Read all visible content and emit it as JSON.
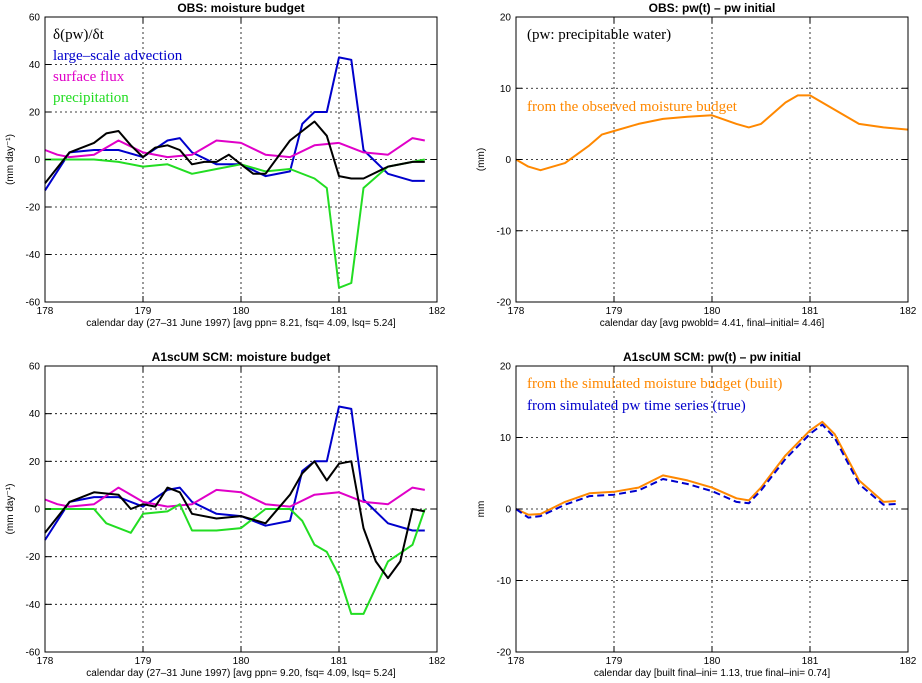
{
  "chart_data": [
    {
      "type": "line",
      "title": "OBS: moisture budget",
      "xlabel": "calendar day (27–31 June 1997)  [avg ppn=  8.21, fsq=  4.09, lsq=  5.24]",
      "ylabel": "(mm day⁻¹)",
      "xlim": [
        178,
        182
      ],
      "ylim": [
        -60,
        60
      ],
      "xticks": [
        178,
        179,
        180,
        181,
        182
      ],
      "yticks": [
        -60,
        -40,
        -20,
        0,
        20,
        40,
        60
      ],
      "grid": true,
      "legend_position": "top-left",
      "legend": [
        {
          "label": "δ(pw)/δt",
          "color": "#000000"
        },
        {
          "label": "large–scale advection",
          "color": "#0000cc"
        },
        {
          "label": "surface flux",
          "color": "#e000c8"
        },
        {
          "label": "precipitation",
          "color": "#22dd22"
        }
      ],
      "series": [
        {
          "color": "#0000cc",
          "x": [
            178,
            178.25,
            178.5,
            178.75,
            179,
            179.25,
            179.375,
            179.5,
            179.75,
            180,
            180.25,
            180.5,
            180.625,
            180.75,
            180.875,
            181,
            181.125,
            181.25,
            181.5,
            181.75,
            181.875
          ],
          "y": [
            -13,
            3,
            4,
            4,
            1,
            8,
            9,
            3,
            -2,
            -2,
            -7,
            -5,
            15,
            20,
            20,
            43,
            42,
            4,
            -6,
            -9,
            -9
          ]
        },
        {
          "color": "#e000c8",
          "x": [
            178,
            178.125,
            178.25,
            178.5,
            178.75,
            179,
            179.25,
            179.5,
            179.75,
            180,
            180.25,
            180.5,
            180.75,
            181,
            181.25,
            181.5,
            181.75,
            181.875
          ],
          "y": [
            4,
            2,
            1,
            2,
            8,
            3,
            1,
            2,
            8,
            7,
            2,
            1,
            6,
            7,
            3,
            2,
            9,
            8
          ]
        },
        {
          "color": "#22dd22",
          "x": [
            178,
            178.25,
            178.5,
            178.75,
            179,
            179.25,
            179.5,
            179.75,
            180,
            180.25,
            180.5,
            180.75,
            180.875,
            181,
            181.125,
            181.25,
            181.5,
            181.75,
            181.875
          ],
          "y": [
            0,
            0,
            0,
            -1,
            -3,
            -2,
            -6,
            -4,
            -2,
            -5,
            -4,
            -8,
            -12,
            -54,
            -52,
            -12,
            -3,
            -1,
            0
          ]
        },
        {
          "color": "#000000",
          "x": [
            178,
            178.25,
            178.5,
            178.625,
            178.75,
            178.875,
            179,
            179.125,
            179.25,
            179.375,
            179.5,
            179.625,
            179.75,
            179.875,
            180,
            180.125,
            180.25,
            180.5,
            180.75,
            180.875,
            181,
            181.125,
            181.25,
            181.5,
            181.75,
            181.875
          ],
          "y": [
            -10,
            3,
            7,
            11,
            12,
            6,
            1,
            5,
            6,
            4,
            -2,
            -1,
            -1,
            2,
            -2,
            -6,
            -6,
            8,
            16,
            10,
            -7,
            -8,
            -8,
            -3,
            -1,
            -1
          ]
        }
      ]
    },
    {
      "type": "line",
      "title": "OBS: pw(t) – pw initial",
      "xlabel": "calendar day [avg pwobld=  4.41, final–initial=  4.46]",
      "ylabel": "(mm)",
      "xlim": [
        178,
        182
      ],
      "ylim": [
        -20,
        20
      ],
      "xticks": [
        178,
        179,
        180,
        181,
        182
      ],
      "yticks": [
        -20,
        -10,
        0,
        10,
        20
      ],
      "grid": true,
      "legend_position": "top-left",
      "legend": [
        {
          "label": "(pw: precipitable water)",
          "color": "#000000"
        },
        {
          "label": "from the observed moisture budget",
          "color": "#ff8800"
        }
      ],
      "series": [
        {
          "color": "#ff8800",
          "x": [
            178,
            178.125,
            178.25,
            178.5,
            178.75,
            178.875,
            179,
            179.25,
            179.5,
            179.75,
            180,
            180.25,
            180.375,
            180.5,
            180.75,
            180.875,
            181,
            181.25,
            181.5,
            181.75,
            182
          ],
          "y": [
            0,
            -1,
            -1.5,
            -0.5,
            2,
            3.5,
            4,
            5,
            5.7,
            6,
            6.2,
            5,
            4.5,
            5,
            8,
            9,
            9,
            7,
            5,
            4.5,
            4.2
          ]
        }
      ]
    },
    {
      "type": "line",
      "title": "A1scUM SCM: moisture budget",
      "xlabel": "calendar day (27–31 June 1997)  [avg ppn=  9.20, fsq=  4.09, lsq=  5.24]",
      "ylabel": "(mm day⁻¹)",
      "xlim": [
        178,
        182
      ],
      "ylim": [
        -60,
        60
      ],
      "xticks": [
        178,
        179,
        180,
        181,
        182
      ],
      "yticks": [
        -60,
        -40,
        -20,
        0,
        20,
        40,
        60
      ],
      "grid": true,
      "series": [
        {
          "color": "#0000cc",
          "x": [
            178,
            178.25,
            178.5,
            178.75,
            179,
            179.25,
            179.375,
            179.5,
            179.75,
            180,
            180.25,
            180.5,
            180.625,
            180.75,
            180.875,
            181,
            181.125,
            181.25,
            181.5,
            181.75,
            181.875
          ],
          "y": [
            -13,
            3,
            5,
            5,
            1,
            8,
            9,
            3,
            -2,
            -3,
            -7,
            -5,
            16,
            20,
            20,
            43,
            42,
            4,
            -6,
            -9,
            -9
          ]
        },
        {
          "color": "#e000c8",
          "x": [
            178,
            178.125,
            178.25,
            178.5,
            178.75,
            179,
            179.25,
            179.5,
            179.75,
            180,
            180.25,
            180.5,
            180.75,
            181,
            181.25,
            181.5,
            181.75,
            181.875
          ],
          "y": [
            4,
            2,
            1,
            2,
            9,
            3,
            1,
            2,
            8,
            7,
            2,
            1,
            6,
            7,
            3,
            2,
            9,
            8
          ]
        },
        {
          "color": "#22dd22",
          "x": [
            178,
            178.25,
            178.5,
            178.625,
            178.875,
            179,
            179.25,
            179.375,
            179.5,
            179.75,
            180,
            180.25,
            180.5,
            180.625,
            180.75,
            180.875,
            181,
            181.125,
            181.25,
            181.5,
            181.75,
            181.875
          ],
          "y": [
            0,
            0,
            0,
            -6,
            -10,
            -2,
            -1,
            2,
            -9,
            -9,
            -8,
            0,
            0,
            -5,
            -15,
            -18,
            -28,
            -44,
            -44,
            -22,
            -15,
            0
          ]
        },
        {
          "color": "#000000",
          "x": [
            178,
            178.25,
            178.5,
            178.75,
            178.875,
            179,
            179.125,
            179.25,
            179.375,
            179.5,
            179.75,
            180,
            180.25,
            180.5,
            180.625,
            180.75,
            180.875,
            181,
            181.125,
            181.25,
            181.375,
            181.5,
            181.625,
            181.75,
            181.875
          ],
          "y": [
            -10,
            3,
            7,
            6,
            0,
            2,
            1,
            9,
            7,
            -2,
            -4,
            -3,
            -6,
            6,
            15,
            20,
            12,
            19,
            20,
            -8,
            -22,
            -29,
            -22,
            0,
            -1
          ]
        }
      ]
    },
    {
      "type": "line",
      "title": "A1scUM SCM: pw(t) – pw initial",
      "xlabel": "calendar day  [built final–ini=  1.13, true final–ini=  0.74]",
      "ylabel": "mm",
      "xlim": [
        178,
        182
      ],
      "ylim": [
        -20,
        20
      ],
      "xticks": [
        178,
        179,
        180,
        181,
        182
      ],
      "yticks": [
        -20,
        -10,
        0,
        10,
        20
      ],
      "grid": true,
      "legend_position": "top-left",
      "legend": [
        {
          "label": "from the simulated moisture budget (built)",
          "color": "#ff8800"
        },
        {
          "label": "from simulated pw time series (true)",
          "color": "#0000cc"
        }
      ],
      "series": [
        {
          "color": "#ff8800",
          "x": [
            178,
            178.125,
            178.25,
            178.5,
            178.75,
            179,
            179.25,
            179.5,
            179.75,
            180,
            180.25,
            180.375,
            180.5,
            180.75,
            181,
            181.125,
            181.25,
            181.5,
            181.75,
            181.875
          ],
          "y": [
            0,
            -0.8,
            -0.7,
            1,
            2.2,
            2.4,
            3,
            4.7,
            4,
            3,
            1.5,
            1.2,
            3,
            7.5,
            11,
            12.2,
            10.5,
            4,
            1,
            1.1
          ]
        },
        {
          "color": "#0000cc",
          "dashed": true,
          "x": [
            178,
            178.125,
            178.25,
            178.5,
            178.75,
            179,
            179.25,
            179.5,
            179.75,
            180,
            180.25,
            180.375,
            180.5,
            180.75,
            181,
            181.125,
            181.25,
            181.5,
            181.75,
            181.875
          ],
          "y": [
            0,
            -1.2,
            -1,
            0.6,
            1.8,
            2,
            2.6,
            4.2,
            3.5,
            2.5,
            1,
            0.8,
            2.6,
            7,
            10.5,
            11.8,
            10,
            3.5,
            0.6,
            0.7
          ]
        }
      ]
    }
  ]
}
